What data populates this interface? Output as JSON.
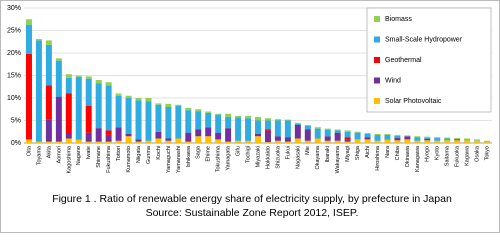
{
  "chart_data": {
    "type": "stacked_bar",
    "title": "Figure 1 . Ratio of renewable energy share of electricity supply, by prefecture in Japan",
    "subtitle": "Source: Sustainable Zone Report 2012, ISEP.",
    "categories": [
      "Oita",
      "Toyama",
      "Akita",
      "Aomori",
      "Kagoshima",
      "Nagano",
      "Iwate",
      "Shimane",
      "Fukushima",
      "Tottori",
      "Kumamoto",
      "Niigata",
      "Gunma",
      "Kochi",
      "Yamaguchi",
      "Yamanashi",
      "Ishikawa",
      "Saga",
      "Ehime",
      "Tokushima",
      "Yamagata",
      "Gifu",
      "Tochigi",
      "Miyazaki",
      "Hokkaido",
      "Shizuoka",
      "Fukui",
      "Nagasaki",
      "Mie",
      "Okayama",
      "Ibaraki",
      "Wakayama",
      "Miyagi",
      "Shiga",
      "Aichi",
      "Hiroshima",
      "Nara",
      "Chiba",
      "Okinawa",
      "Kanagawa",
      "Hyogo",
      "Kyoto",
      "Saitama",
      "Fukuoka",
      "Kagawa",
      "Osaka",
      "Tokyo"
    ],
    "series": [
      {
        "name": "Solar Photovoltaic",
        "color": "#ffc000",
        "values": [
          0.8,
          0.3,
          0.3,
          0.3,
          1,
          0.7,
          0.3,
          0.3,
          0.3,
          0.5,
          1.5,
          0.3,
          0.5,
          1,
          0.5,
          1,
          0.3,
          1.5,
          1.5,
          0.8,
          0.3,
          0.5,
          0.5,
          1.5,
          0.2,
          0.5,
          0.3,
          1,
          0.5,
          1,
          0.5,
          0.5,
          0.3,
          0.8,
          0.8,
          0.5,
          0.7,
          0.6,
          0.8,
          0.5,
          0.6,
          0.5,
          0.6,
          0.6,
          0.6,
          0.4,
          0.2
        ]
      },
      {
        "name": "Wind",
        "color": "#7030a0",
        "values": [
          0,
          0,
          5,
          10,
          1,
          0,
          2,
          3,
          1.5,
          3,
          0.5,
          0.5,
          0,
          1.5,
          0.5,
          0,
          2,
          1.5,
          2,
          1.5,
          3,
          0,
          0,
          0.5,
          2.5,
          1,
          1,
          3,
          2.5,
          0,
          1,
          1.8,
          0.5,
          0,
          0.5,
          0,
          0,
          0.5,
          0.7,
          0,
          0.3,
          0,
          0,
          0.2,
          0,
          0,
          0
        ]
      },
      {
        "name": "Geothermal",
        "color": "#ff0000",
        "values": [
          19,
          0,
          7.5,
          0,
          9,
          0,
          6,
          0,
          1,
          0,
          0,
          0,
          0,
          0,
          0,
          0,
          0,
          0,
          0,
          0,
          0,
          0,
          0,
          0,
          0.3,
          0,
          0,
          0,
          0,
          0,
          0,
          0,
          0.5,
          0,
          0,
          0,
          0,
          0,
          0,
          0,
          0,
          0,
          0,
          0,
          0,
          0,
          0
        ]
      },
      {
        "name": "Small-Scale Hydropower",
        "color": "#31ace2",
        "values": [
          6.5,
          22.5,
          9,
          8,
          3.5,
          14,
          6,
          10,
          10,
          7,
          8,
          8.7,
          8.8,
          6,
          7,
          7.3,
          5,
          4,
          3.2,
          4,
          2.5,
          5.2,
          5,
          3,
          2,
          3.5,
          3.7,
          0.3,
          0.8,
          2.2,
          1.4,
          0.5,
          1.2,
          1.5,
          0.7,
          1.3,
          1.1,
          0.5,
          0,
          0.8,
          0.3,
          0.6,
          0.4,
          0.1,
          0.2,
          0.1,
          0.1
        ]
      },
      {
        "name": "Biomass",
        "color": "#92d050",
        "values": [
          1.2,
          0.3,
          1,
          0.5,
          0.8,
          0.3,
          0.5,
          0.7,
          0.7,
          0.5,
          0.5,
          0.5,
          0.7,
          0.3,
          0.7,
          0.2,
          0.5,
          0.5,
          0.3,
          0.2,
          0.7,
          0.3,
          0.5,
          0.8,
          0.5,
          0.3,
          0.2,
          0.2,
          0.2,
          0.3,
          0.3,
          0.2,
          0.3,
          0.2,
          0.2,
          0.2,
          0.2,
          0.2,
          0.2,
          0.2,
          0.2,
          0.2,
          0.2,
          0.2,
          0.2,
          0.3,
          0.2
        ]
      }
    ],
    "ylim": [
      0,
      30
    ],
    "yticks": [
      {
        "value": 0,
        "label": "0%"
      },
      {
        "value": 5,
        "label": "5%"
      },
      {
        "value": 10,
        "label": "10%"
      },
      {
        "value": 15,
        "label": "15%"
      },
      {
        "value": 20,
        "label": "20%"
      },
      {
        "value": 25,
        "label": "25%"
      },
      {
        "value": 30,
        "label": "30%"
      }
    ],
    "grid": true,
    "legend": "upper right"
  }
}
